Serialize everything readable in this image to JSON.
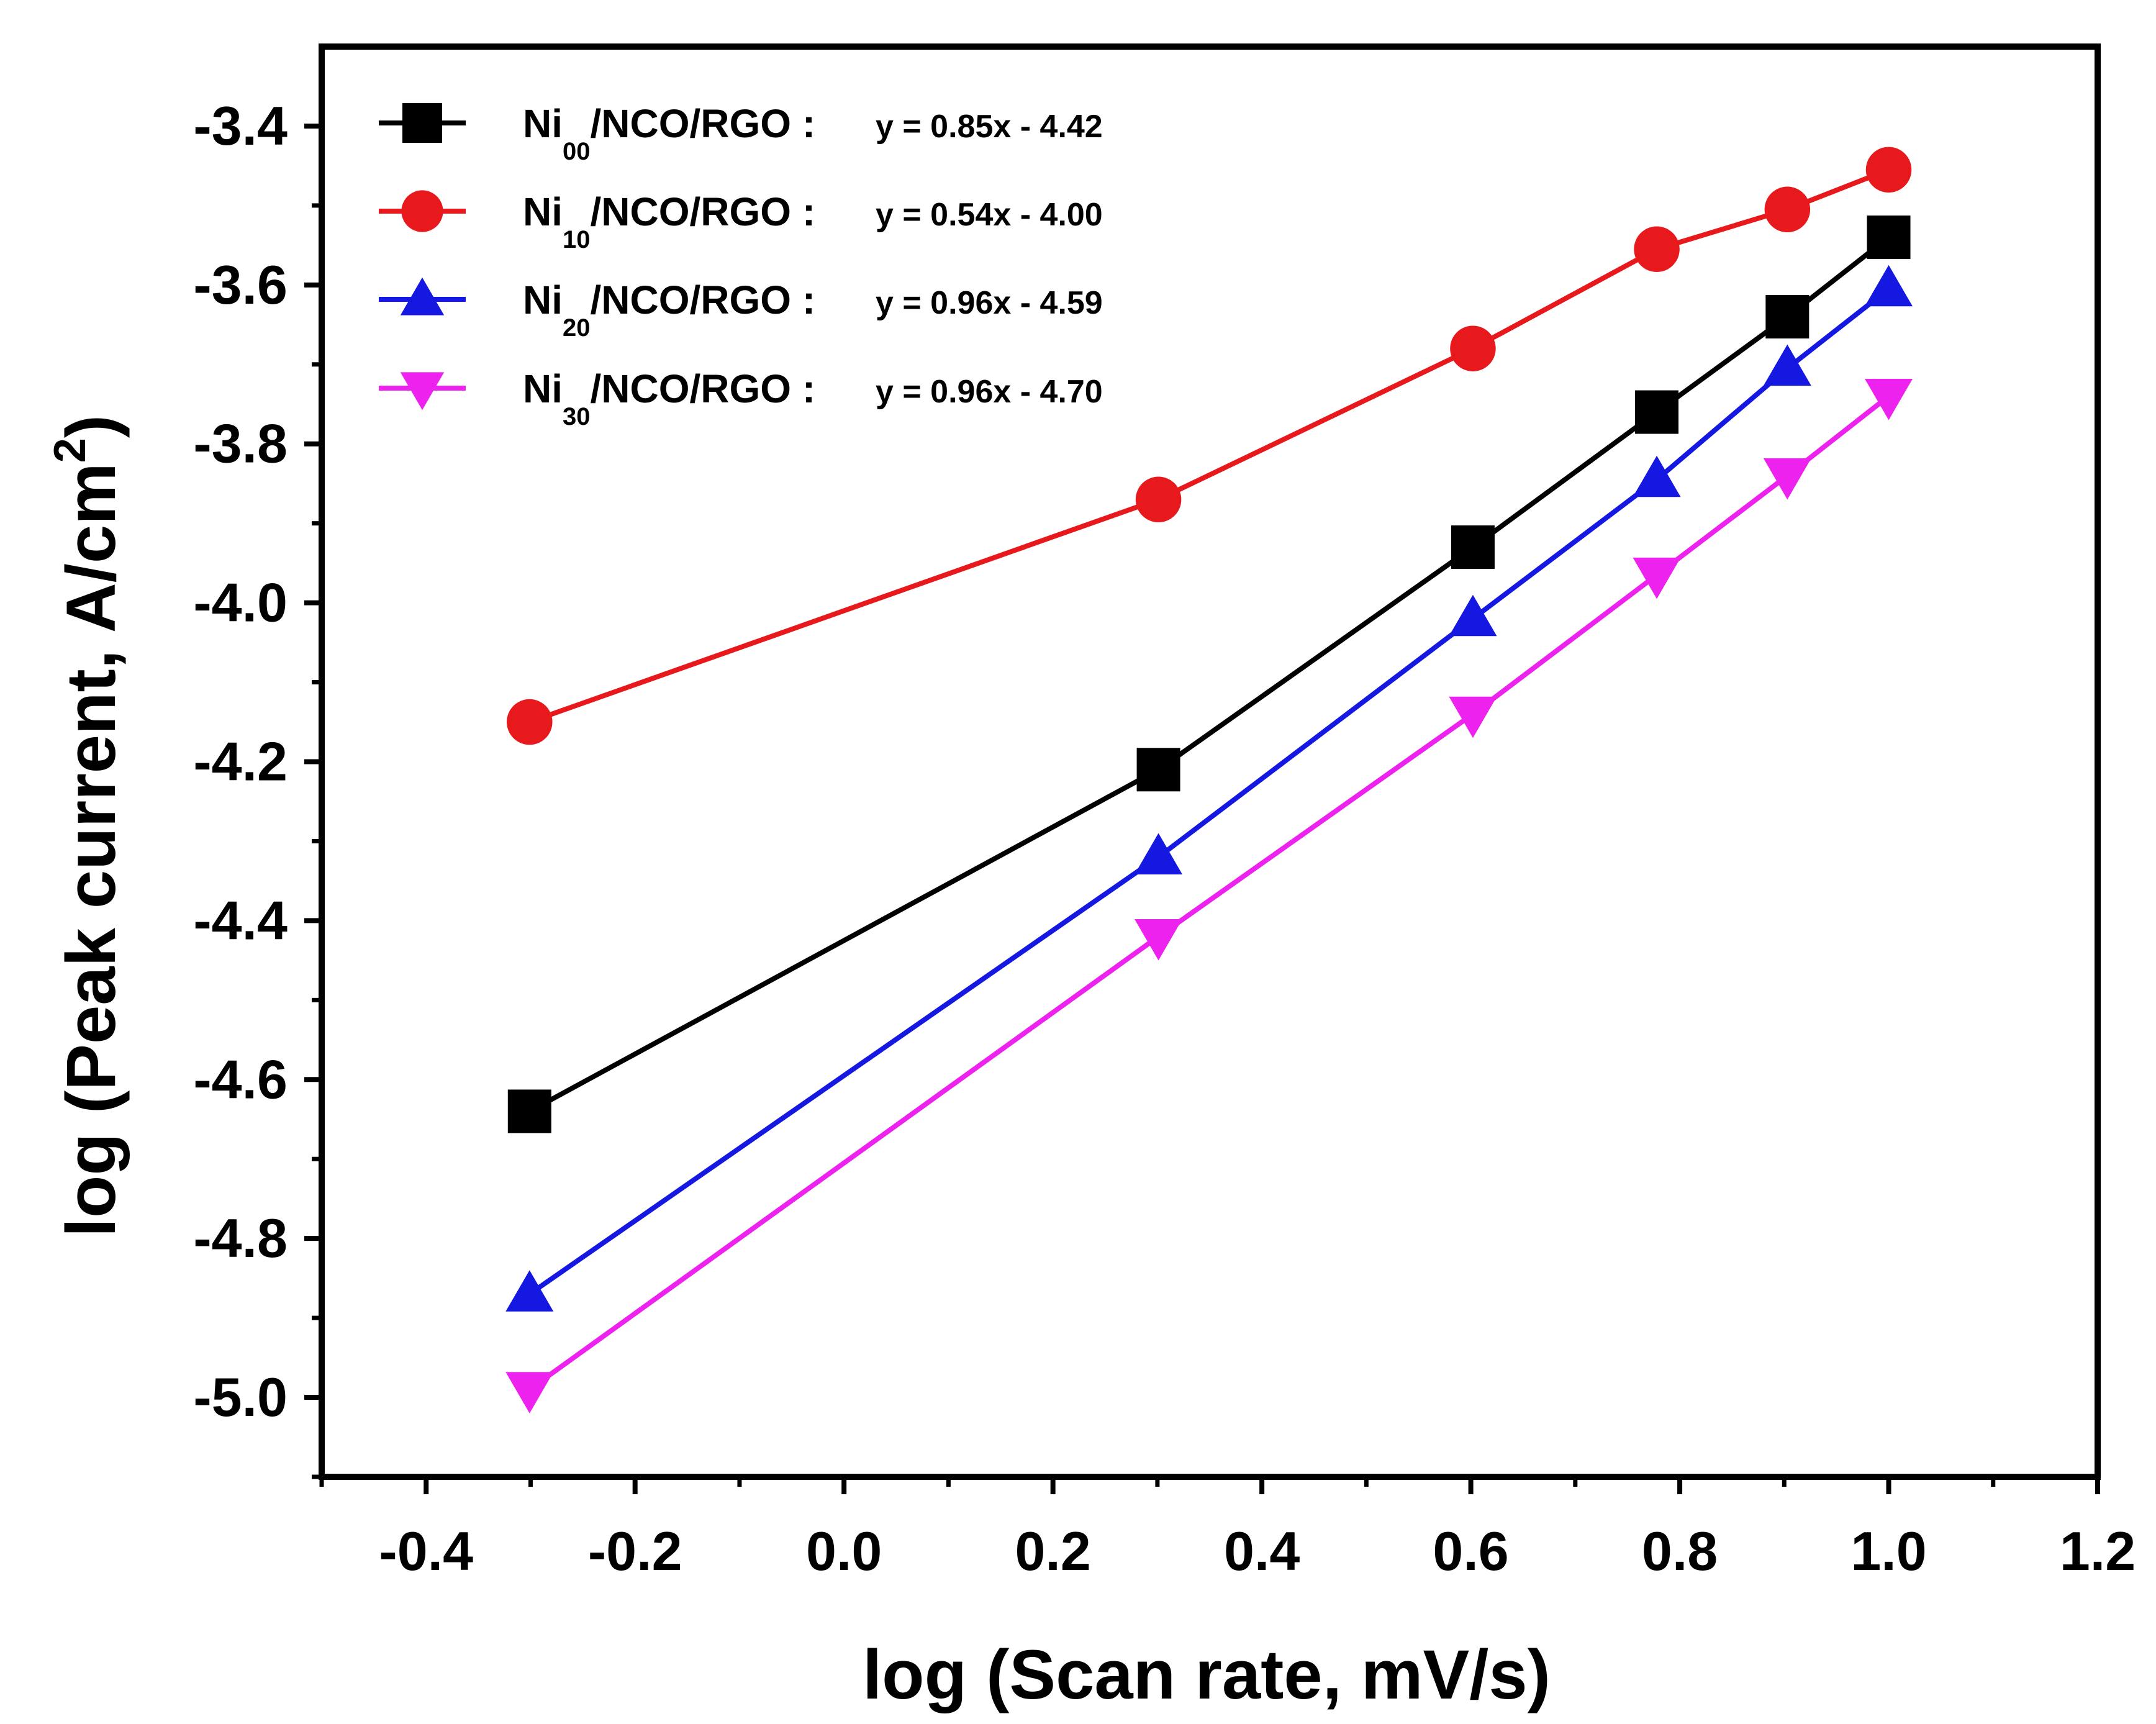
{
  "chart_data": {
    "type": "line",
    "xlabel": "log (Scan rate, mV/s)",
    "ylabel": "log (Peak current, A/cm",
    "ylabel_superscript": "2",
    "ylabel_close": ")",
    "xlim": [
      -0.5,
      1.2
    ],
    "ylim": [
      -5.1,
      -3.3
    ],
    "xticks": [
      -0.4,
      -0.2,
      0.0,
      0.2,
      0.4,
      0.6,
      0.8,
      1.0,
      1.2
    ],
    "xtick_labels": [
      "-0.4",
      "-0.2",
      "0.0",
      "0.2",
      "0.4",
      "0.6",
      "0.8",
      "1.0",
      "1.2"
    ],
    "yticks": [
      -5.0,
      -4.8,
      -4.6,
      -4.4,
      -4.2,
      -4.0,
      -3.8,
      -3.6,
      -3.4
    ],
    "ytick_labels": [
      "-5.0",
      "-4.8",
      "-4.6",
      "-4.4",
      "-4.2",
      "-4.0",
      "-3.8",
      "-3.6",
      "-3.4"
    ],
    "grid": false,
    "legend_position": "top-left",
    "x": [
      -0.301,
      0.301,
      0.602,
      0.778,
      0.903,
      1.0
    ],
    "series": [
      {
        "name_main": "Ni",
        "name_sub": "00",
        "name_rest": "/NCO/RGO :",
        "equation": "y = 0.85x - 4.42",
        "color": "#000000",
        "marker": "square",
        "values": [
          -4.64,
          -4.21,
          -3.93,
          -3.76,
          -3.64,
          -3.54
        ]
      },
      {
        "name_main": "Ni",
        "name_sub": "10",
        "name_rest": "/NCO/RGO :",
        "equation": "y = 0.54x -  4.00",
        "color": "#e8191c",
        "marker": "circle",
        "values": [
          -4.15,
          -3.87,
          -3.68,
          -3.555,
          -3.505,
          -3.455
        ]
      },
      {
        "name_main": "Ni",
        "name_sub": "20",
        "name_rest": "/NCO/RGO :",
        "equation": "y = 0.96x - 4.59",
        "color": "#1518e0",
        "marker": "triangle-up",
        "values": [
          -4.87,
          -4.32,
          -4.02,
          -3.845,
          -3.705,
          -3.605
        ]
      },
      {
        "name_main": "Ni",
        "name_sub": "30",
        "name_rest": "/NCO/RGO :",
        "equation": "y = 0.96x - 4.70",
        "color": "#ee22ee",
        "marker": "triangle-down",
        "values": [
          -4.99,
          -4.42,
          -4.14,
          -3.965,
          -3.84,
          -3.74
        ]
      }
    ]
  }
}
